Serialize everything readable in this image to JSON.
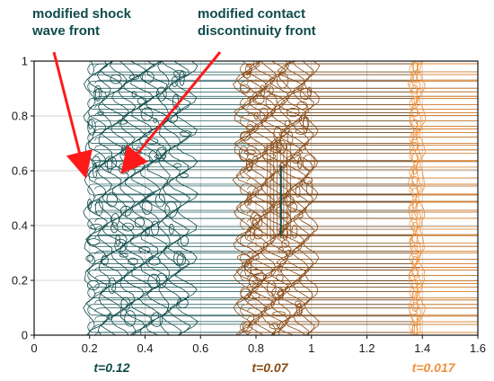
{
  "chart_data": {
    "type": "contour",
    "xlim": [
      0,
      1.6
    ],
    "ylim": [
      0,
      1
    ],
    "x_ticks": [
      "0",
      "0.2",
      "0.4",
      "0.6",
      "0.8",
      "1",
      "1.2",
      "1.4",
      "1.6"
    ],
    "y_ticks": [
      "0",
      "0.2",
      "0.4",
      "0.6",
      "0.8",
      "1"
    ],
    "grid": true,
    "series": [
      {
        "name": "t=0.12",
        "color": "#0f4b4b",
        "front_x": 0.2,
        "wake_x": 0.55
      },
      {
        "name": "t=0.07",
        "color": "#8a4a14",
        "front_x": 0.75,
        "wake_x": 1.0
      },
      {
        "name": "t=0.017",
        "color": "#f2913a",
        "front_x": 1.36,
        "wake_x": 1.4
      }
    ],
    "annotations": [
      {
        "text": [
          "modified shock",
          "wave front"
        ],
        "color": "#0f4b4b",
        "arrow_color": "#ff1a1a",
        "target": [
          0.18,
          0.6
        ]
      },
      {
        "text": [
          "modified contact",
          "discontinuity front"
        ],
        "color": "#0f4b4b",
        "arrow_color": "#ff1a1a",
        "target": [
          0.33,
          0.61
        ]
      }
    ]
  }
}
